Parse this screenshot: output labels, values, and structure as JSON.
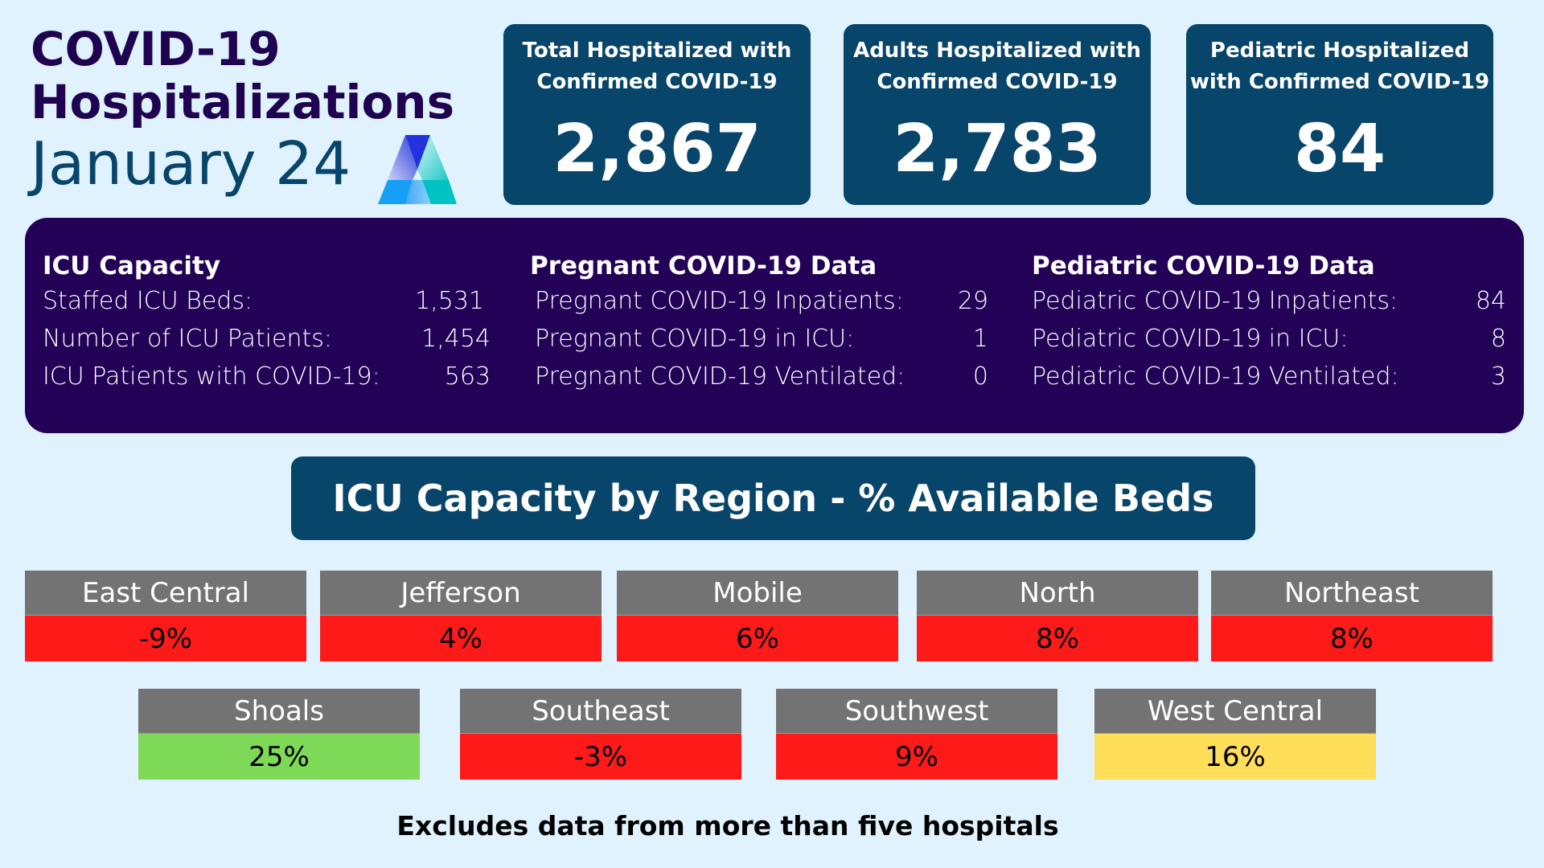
{
  "header": {
    "title_line1": "COVID-19",
    "title_line2": "Hospitalizations",
    "date": "January 24",
    "logo_icon": "triangle-a-logo-icon"
  },
  "stat_cards": [
    {
      "label_line1": "Total Hospitalized with",
      "label_line2": "Confirmed COVID-19",
      "value": "2,867"
    },
    {
      "label_line1": "Adults Hospitalized with",
      "label_line2": "Confirmed COVID-19",
      "value": "2,783"
    },
    {
      "label_line1": "Pediatric Hospitalized",
      "label_line2": "with Confirmed COVID-19",
      "value": "84"
    }
  ],
  "info_panel": {
    "icu": {
      "heading": "ICU Capacity",
      "rows": [
        {
          "label": "Staffed ICU Beds:",
          "value": "1,531"
        },
        {
          "label": "Number of ICU Patients:",
          "value": "1,454"
        },
        {
          "label": "ICU Patients with COVID-19:",
          "value": "563"
        }
      ]
    },
    "pregnant": {
      "heading": "Pregnant COVID-19 Data",
      "rows": [
        {
          "label": "Pregnant COVID-19 Inpatients:",
          "value": "29"
        },
        {
          "label": "Pregnant COVID-19 in ICU:",
          "value": "1"
        },
        {
          "label": "Pregnant COVID-19 Ventilated:",
          "value": "0"
        }
      ]
    },
    "pediatric": {
      "heading": "Pediatric COVID-19 Data",
      "rows": [
        {
          "label": "Pediatric COVID-19 Inpatients:",
          "value": "84"
        },
        {
          "label": "Pediatric COVID-19 in ICU:",
          "value": "8"
        },
        {
          "label": "Pediatric COVID-19 Ventilated:",
          "value": "3"
        }
      ]
    }
  },
  "region_section": {
    "title": "ICU Capacity by Region - % Available Beds",
    "status_colors": {
      "red": "#ff1a1a",
      "yellow": "#ffde59",
      "green": "#7ed957"
    },
    "regions": [
      {
        "name": "East Central",
        "value": "-9%",
        "status": "red"
      },
      {
        "name": "Jefferson",
        "value": "4%",
        "status": "red"
      },
      {
        "name": "Mobile",
        "value": "6%",
        "status": "red"
      },
      {
        "name": "North",
        "value": "8%",
        "status": "red"
      },
      {
        "name": "Northeast",
        "value": "8%",
        "status": "red"
      },
      {
        "name": "Shoals",
        "value": "25%",
        "status": "green"
      },
      {
        "name": "Southeast",
        "value": "-3%",
        "status": "red"
      },
      {
        "name": "Southwest",
        "value": "9%",
        "status": "red"
      },
      {
        "name": "West Central",
        "value": "16%",
        "status": "yellow"
      }
    ]
  },
  "footnote": "Excludes data from more than five hospitals"
}
